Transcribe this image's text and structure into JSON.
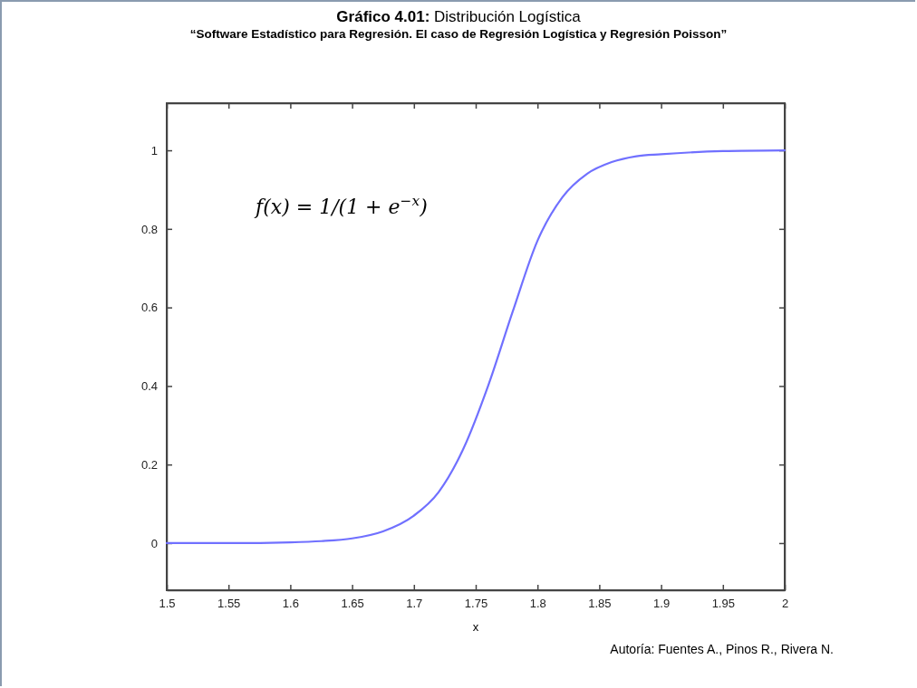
{
  "chart_data": {
    "type": "line",
    "title": "Gráfico 4.01: Distribución Logística",
    "subtitle": "“Software Estadístico para Regresión. El caso de Regresión Logística y Regresión Poisson”",
    "xlabel": "x",
    "annotations": [
      "f(x) = 1/(1 + e$^{−x}$)",
      "Autoría: Fuentes A., Pinos R., Rivera N."
    ],
    "x": [
      1.5,
      1.55,
      1.6,
      1.625,
      1.65,
      1.675,
      1.7,
      1.72,
      1.74,
      1.76,
      1.78,
      1.8,
      1.82,
      1.84,
      1.86,
      1.88,
      1.9,
      1.95,
      2
    ],
    "series": [
      {
        "color": "#7070ff",
        "values": [
          0,
          0,
          0.002,
          0.005,
          0.012,
          0.03,
          0.07,
          0.13,
          0.24,
          0.4,
          0.59,
          0.77,
          0.88,
          0.94,
          0.97,
          0.985,
          0.99,
          0.998,
          1
        ]
      }
    ],
    "xlim": [
      1.5,
      2
    ],
    "ylim": [
      -0.12,
      1.12
    ],
    "xticks": [
      1.5,
      1.55,
      1.6,
      1.65,
      1.7,
      1.75,
      1.8,
      1.85,
      1.9,
      1.95,
      2
    ],
    "yticks": [
      0,
      0.2,
      0.4,
      0.6,
      0.8,
      1
    ],
    "grid": false,
    "marker": "none",
    "line_style": "solid"
  }
}
